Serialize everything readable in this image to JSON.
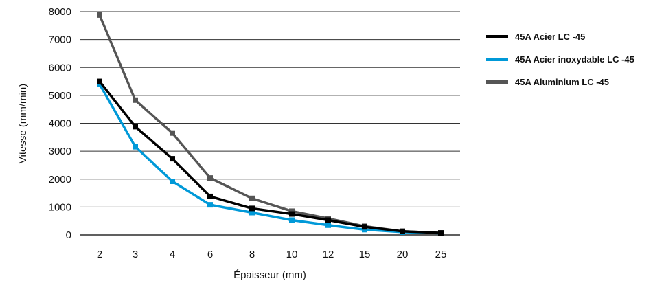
{
  "chart_data": {
    "type": "line",
    "categories": [
      "2",
      "3",
      "4",
      "6",
      "8",
      "10",
      "12",
      "15",
      "20",
      "25"
    ],
    "yticks": [
      "0",
      "1000",
      "2000",
      "3000",
      "4000",
      "5000",
      "6000",
      "7000",
      "8000"
    ],
    "ylim": [
      0,
      8000
    ],
    "xlabel": "Épaisseur (mm)",
    "ylabel": "Vitesse (mm/min)",
    "grid": "horizontal",
    "legend_position": "right",
    "series": [
      {
        "name": "45A Acier LC -45",
        "color": "#000000",
        "values": [
          5500,
          3880,
          2730,
          1380,
          950,
          750,
          530,
          290,
          130,
          70
        ]
      },
      {
        "name": "45A Acier inoxydable LC -45",
        "color": "#0099d8",
        "values": [
          5400,
          3160,
          1920,
          1080,
          800,
          530,
          350,
          190,
          100,
          60
        ]
      },
      {
        "name": "45A Aluminium LC -45",
        "color": "#555555",
        "values": [
          7880,
          4830,
          3650,
          2040,
          1310,
          850,
          590,
          310,
          130,
          70
        ]
      }
    ]
  }
}
